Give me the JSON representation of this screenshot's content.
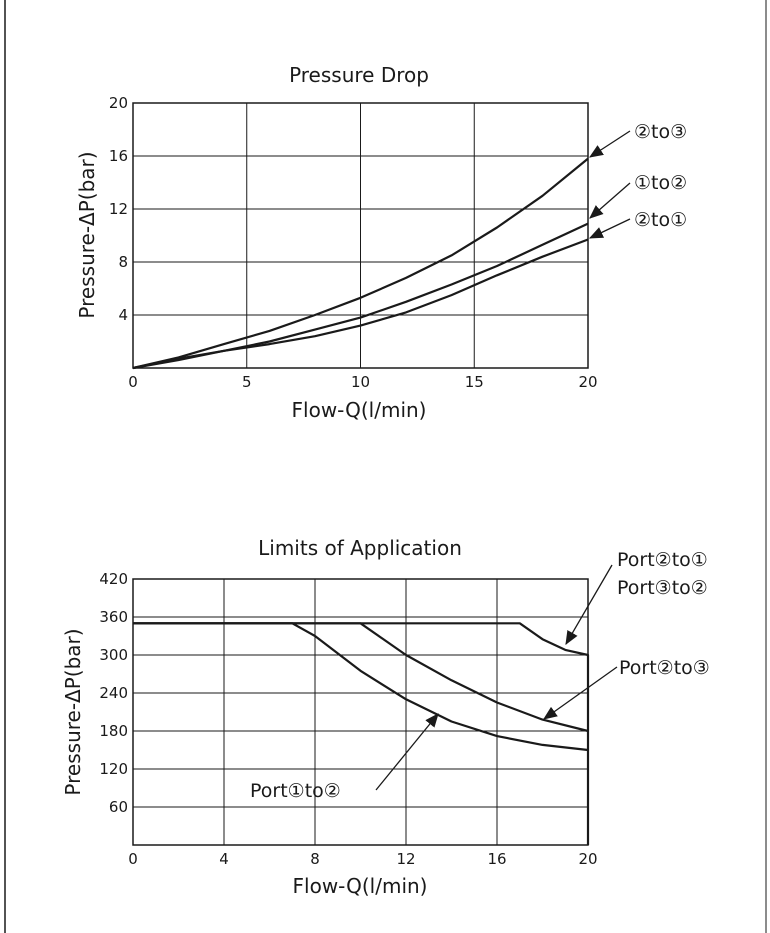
{
  "chart_data": [
    {
      "type": "line",
      "title": "Pressure Drop",
      "xlabel": "Flow-Q(l/min)",
      "ylabel": "Pressure-ΔP(bar)",
      "xlim": [
        0,
        20
      ],
      "ylim": [
        0,
        20
      ],
      "x_ticks": [
        0,
        5,
        10,
        15,
        20
      ],
      "y_ticks": [
        4,
        8,
        12,
        16,
        20
      ],
      "x_tick_labels": [
        "0",
        "5",
        "10",
        "15",
        "20"
      ],
      "y_tick_labels": [
        "4",
        "8",
        "12",
        "16",
        "20"
      ],
      "grid": true,
      "series": [
        {
          "name": "②to③",
          "x": [
            0,
            2,
            4,
            6,
            8,
            10,
            12,
            14,
            16,
            18,
            20
          ],
          "y": [
            0,
            0.8,
            1.8,
            2.8,
            4.0,
            5.3,
            6.8,
            8.5,
            10.6,
            13.0,
            15.8
          ]
        },
        {
          "name": "①to②",
          "x": [
            0,
            2,
            4,
            6,
            8,
            10,
            12,
            14,
            16,
            18,
            20
          ],
          "y": [
            0,
            0.6,
            1.3,
            2.0,
            2.9,
            3.8,
            5.0,
            6.3,
            7.7,
            9.3,
            10.9
          ]
        },
        {
          "name": "②to①",
          "x": [
            0,
            2,
            4,
            6,
            8,
            10,
            12,
            14,
            16,
            18,
            20
          ],
          "y": [
            0,
            0.7,
            1.3,
            1.8,
            2.4,
            3.2,
            4.2,
            5.5,
            7.0,
            8.4,
            9.7
          ]
        }
      ],
      "annotations": [
        "②to③",
        "①to②",
        "②to①"
      ]
    },
    {
      "type": "line",
      "title": "Limits of Application",
      "xlabel": "Flow-Q(l/min)",
      "ylabel": "Pressure-ΔP(bar)",
      "xlim": [
        0,
        20
      ],
      "ylim": [
        0,
        420
      ],
      "x_ticks": [
        0,
        4,
        8,
        12,
        16,
        20
      ],
      "y_ticks": [
        60,
        120,
        180,
        240,
        300,
        360,
        420
      ],
      "x_tick_labels": [
        "0",
        "4",
        "8",
        "12",
        "16",
        "20"
      ],
      "y_tick_labels": [
        "60",
        "120",
        "180",
        "240",
        "300",
        "360",
        "420"
      ],
      "grid": true,
      "series": [
        {
          "name": "Port②to① Port③to②",
          "x": [
            0,
            17,
            18,
            19,
            20,
            20
          ],
          "y": [
            350,
            350,
            325,
            308,
            300,
            0
          ]
        },
        {
          "name": "Port②to③",
          "x": [
            0,
            10,
            12,
            14,
            16,
            18,
            20
          ],
          "y": [
            350,
            350,
            300,
            260,
            225,
            198,
            180
          ]
        },
        {
          "name": "Port①to②",
          "x": [
            0,
            7,
            8,
            10,
            12,
            14,
            16,
            18,
            20
          ],
          "y": [
            350,
            350,
            330,
            275,
            230,
            195,
            172,
            158,
            150
          ]
        }
      ],
      "annotations": [
        "Port②to①",
        "Port③to②",
        "Port②to③",
        "Port①to②"
      ]
    }
  ]
}
